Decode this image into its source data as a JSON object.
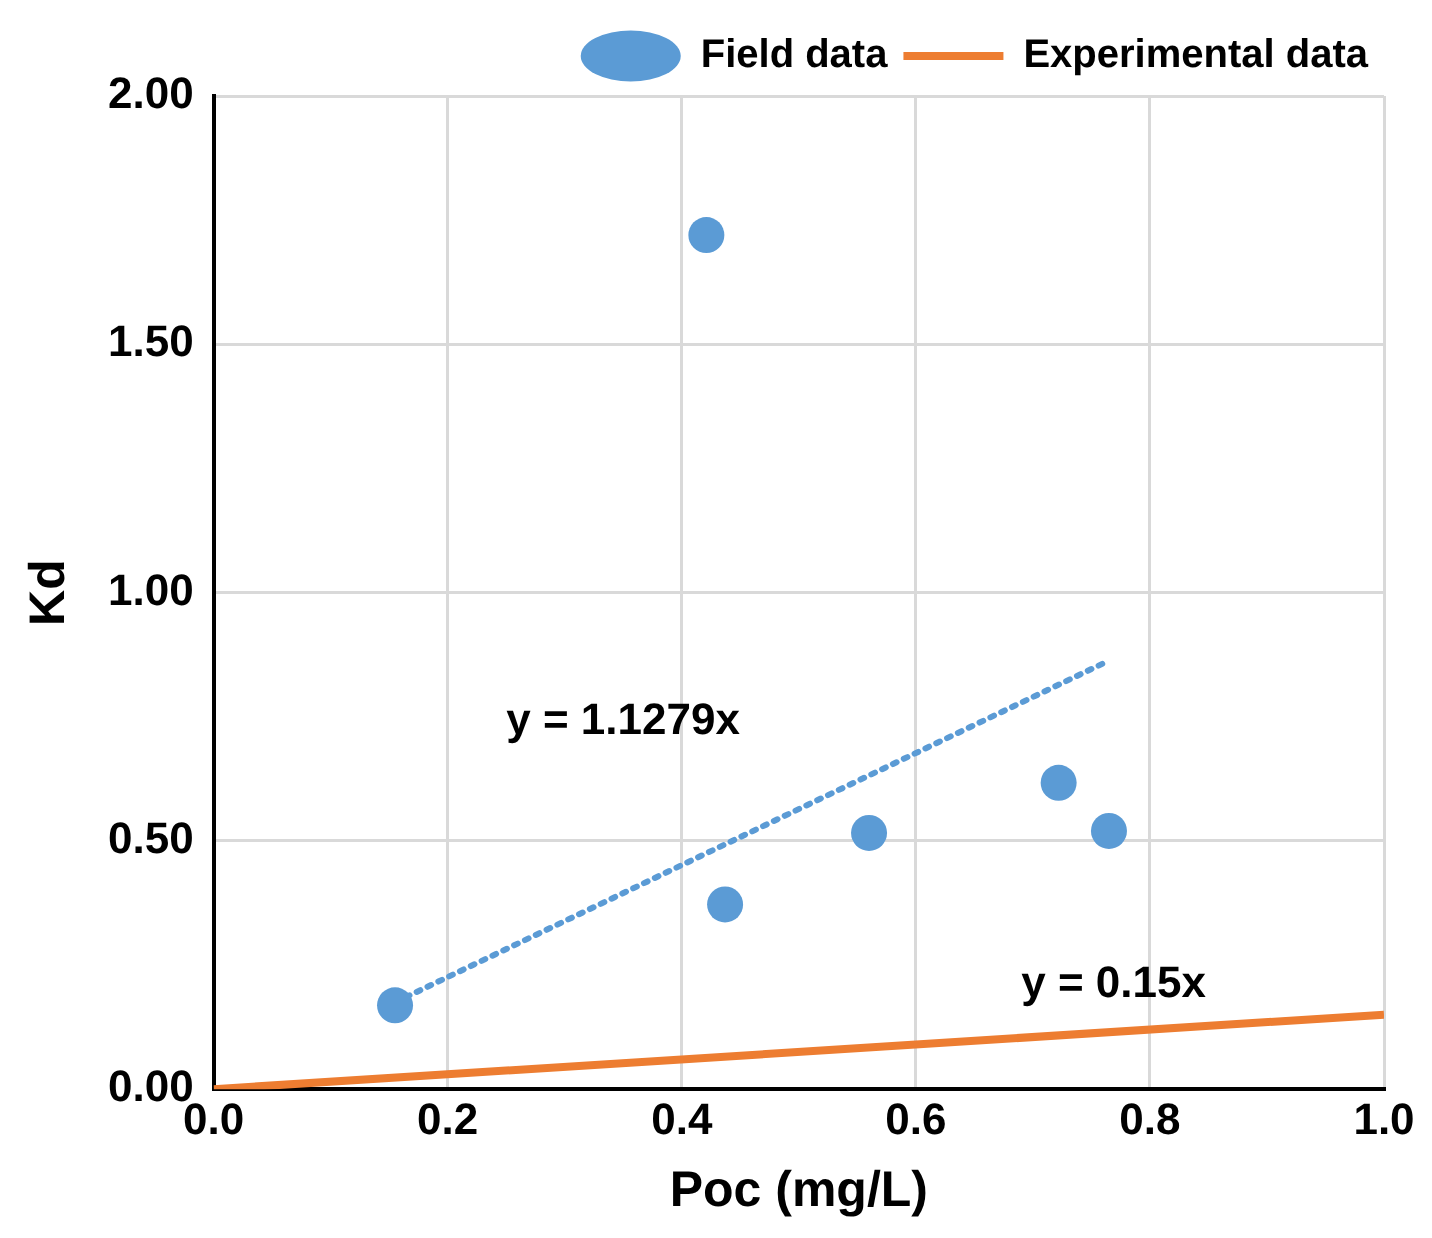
{
  "chart_data": {
    "type": "scatter",
    "xlabel": "Poc (mg/L)",
    "ylabel": "Kd",
    "xlim": [
      0,
      1
    ],
    "xticks": [
      {
        "value": 0,
        "label": "0.0"
      },
      {
        "value": 0.2,
        "label": "0.2"
      },
      {
        "value": 0.4,
        "label": "0.4"
      },
      {
        "value": 0.6,
        "label": "0.6"
      },
      {
        "value": 0.8,
        "label": "0.8"
      },
      {
        "value": 1,
        "label": "1.0"
      }
    ],
    "ylim": [
      0,
      2
    ],
    "yticks": [
      {
        "value": 0,
        "label": "0.00"
      },
      {
        "value": 0.5,
        "label": "0.50"
      },
      {
        "value": 1,
        "label": "1.00"
      },
      {
        "value": 1.5,
        "label": "1.50"
      },
      {
        "value": 2,
        "label": "2.00"
      }
    ],
    "grid": true,
    "legend": "top right",
    "series": [
      {
        "name": "Field data",
        "marker": "circle",
        "color": "#5b9bd5",
        "x": [
          0.155,
          0.421,
          0.437,
          0.56,
          0.722,
          0.765
        ],
        "values": [
          0.169,
          1.72,
          0.372,
          0.516,
          0.617,
          0.52
        ]
      },
      {
        "type": "line",
        "marker": "none",
        "line_style": "dotted",
        "color": "#5b9bd5",
        "x": [
          0.155,
          0.765
        ],
        "values": [
          0.175,
          0.863
        ]
      },
      {
        "name": "Experimental data",
        "type": "line",
        "marker": "none",
        "line_style": "solid",
        "color": "#ed7d31",
        "x": [
          0,
          1
        ],
        "values": [
          0,
          0.15
        ]
      }
    ],
    "annotations": [
      "y = 1.1279x",
      "y = 0.15x"
    ]
  }
}
